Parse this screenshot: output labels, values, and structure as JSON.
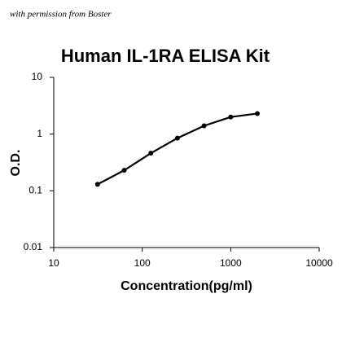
{
  "watermark": "with permission from Boster",
  "chart_data": {
    "type": "line",
    "title": "Human IL-1RA ELISA Kit",
    "x_label": "Concentration(pg/ml)",
    "y_label": "O.D.",
    "x": [
      31.25,
      62.5,
      125,
      250,
      500,
      1000,
      2000
    ],
    "series": [
      {
        "color": "#000000",
        "values": [
          0.13,
          0.23,
          0.46,
          0.85,
          1.4,
          2.0,
          2.3
        ]
      }
    ],
    "xlim": [
      10,
      10000
    ],
    "xticks": [
      10,
      100,
      1000,
      10000
    ],
    "ylim": [
      0.01,
      10
    ],
    "yticks": [
      0.01,
      0.1,
      1,
      10
    ],
    "xscale": "log",
    "yscale": "log",
    "grid": false
  }
}
